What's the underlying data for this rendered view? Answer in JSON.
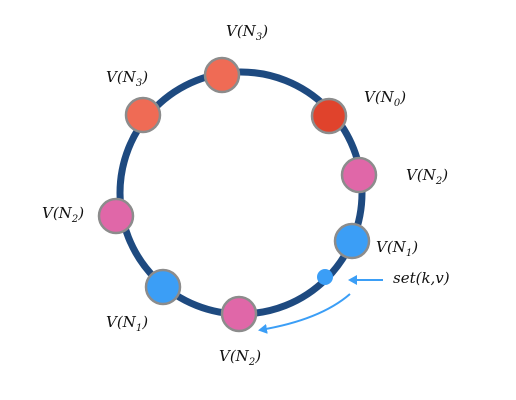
{
  "ring": {
    "color": "#1e4a80"
  },
  "nodes": [
    {
      "id": "node-top",
      "fill": "#ef6b55",
      "label": {
        "prefix": "V(N",
        "sub": "3",
        "suffix": ")"
      }
    },
    {
      "id": "node-top-right",
      "fill": "#e0432c",
      "label": {
        "prefix": "V(N",
        "sub": "0",
        "suffix": ")"
      }
    },
    {
      "id": "node-right",
      "fill": "#e067a8",
      "label": {
        "prefix": "V(N",
        "sub": "2",
        "suffix": ")"
      }
    },
    {
      "id": "node-lower-right",
      "fill": "#3b9ef6",
      "label": {
        "prefix": "V(N",
        "sub": "1",
        "suffix": ")"
      }
    },
    {
      "id": "node-bottom",
      "fill": "#e067a8",
      "label": {
        "prefix": "V(N",
        "sub": "2",
        "suffix": ")"
      }
    },
    {
      "id": "node-lower-left",
      "fill": "#3b9ef6",
      "label": {
        "prefix": "V(N",
        "sub": "1",
        "suffix": ")"
      }
    },
    {
      "id": "node-left",
      "fill": "#e067a8",
      "label": {
        "prefix": "V(N",
        "sub": "2",
        "suffix": ")"
      }
    },
    {
      "id": "node-upper-left",
      "fill": "#ef6b55",
      "label": {
        "prefix": "V(N",
        "sub": "3",
        "suffix": ")"
      }
    }
  ],
  "key": {
    "fill": "#3b9ef6",
    "label": "set(k,v)"
  },
  "arrow_color": "#3b9ef6",
  "node_stroke": "#8c8c8c"
}
